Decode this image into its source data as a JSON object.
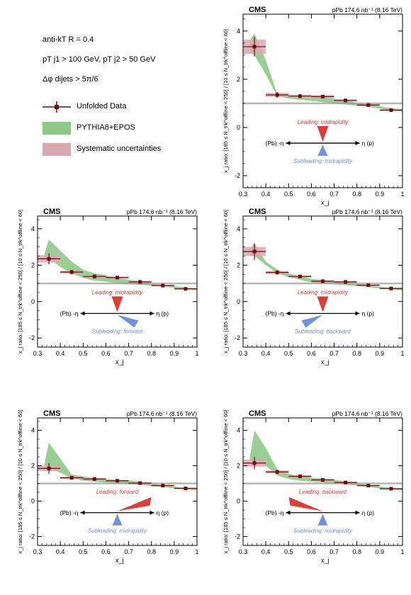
{
  "legend": {
    "jet_def": "anti-kT R = 0.4",
    "pt_cuts": "pT j1 > 100 GeV, pT j2 > 50 GeV",
    "dphi_cut": "Δφ dijets > 5π/6",
    "entries": [
      {
        "label": "Unfolded Data",
        "kind": "marker"
      },
      {
        "label": "PYTHIA8+EPOS",
        "kind": "band"
      },
      {
        "label": "Systematic uncertainties",
        "kind": "syst"
      }
    ]
  },
  "colors": {
    "data": "#6b0e0e",
    "model_band": "#8fc98a",
    "syst_box": "#d9a9b1",
    "leading": "#d9403c",
    "subleading": "#6f93d6",
    "unity_line": "#999999"
  },
  "chart_data": [
    {
      "type": "scatter",
      "experiment": "CMS",
      "energy_label": "pPb 174.6 nb⁻¹ (8.16 TeV)",
      "xlabel": "x_j",
      "ylabel": "x_j ratio: [185 ≤ N_trk^offline < 250] / [10 ≤ N_trk^offline < 60]",
      "xlim": [
        0.3,
        1.0
      ],
      "ylim": [
        -2.5,
        4.7
      ],
      "x_ticks": [
        "0.3",
        "0.4",
        "0.5",
        "0.6",
        "0.7",
        "0.8",
        "0.9",
        "1"
      ],
      "y_ticks": [
        "-2",
        "0",
        "2",
        "4"
      ],
      "x": [
        0.35,
        0.45,
        0.55,
        0.65,
        0.75,
        0.85,
        0.95
      ],
      "y": [
        3.35,
        1.35,
        1.3,
        1.28,
        1.12,
        0.93,
        0.72
      ],
      "y_err": [
        0.4,
        0.12,
        0.08,
        0.06,
        0.06,
        0.05,
        0.05
      ],
      "syst": [
        0.3,
        0.08,
        0.06,
        0.06,
        0.05,
        0.04,
        0.04
      ],
      "model_band": {
        "x": [
          0.33,
          0.35,
          0.4,
          0.45,
          0.5,
          0.55,
          0.6,
          0.65,
          0.7,
          0.75,
          0.8,
          0.85,
          0.9,
          0.95,
          1.0
        ],
        "lo": [
          3.1,
          3.0,
          2.2,
          1.3,
          1.2,
          1.15,
          1.1,
          1.05,
          1.0,
          0.95,
          0.9,
          0.85,
          0.78,
          0.7,
          0.65
        ],
        "hi": [
          3.6,
          3.9,
          2.8,
          1.4,
          1.35,
          1.3,
          1.28,
          1.25,
          1.2,
          1.12,
          1.02,
          0.95,
          0.88,
          0.8,
          0.75
        ]
      },
      "leading_label": "Leading: midrapidity",
      "leading_dir": "mid",
      "subleading_label": "Subleading: midrapidity",
      "subleading_dir": "mid",
      "eta_left": "(Pb) -η",
      "eta_right": "η (p)"
    },
    {
      "type": "scatter",
      "experiment": "CMS",
      "energy_label": "pPb 174.6 nb⁻¹ (8.16 TeV)",
      "xlabel": "x_j",
      "ylabel": "x_j ratio: [185 ≤ N_trk^offline < 250] / [10 ≤ N_trk^offline < 60]",
      "xlim": [
        0.3,
        1.0
      ],
      "ylim": [
        -2.5,
        4.7
      ],
      "x_ticks": [
        "0.3",
        "0.4",
        "0.5",
        "0.6",
        "0.7",
        "0.8",
        "0.9",
        "1"
      ],
      "y_ticks": [
        "-2",
        "0",
        "2",
        "4"
      ],
      "x": [
        0.35,
        0.45,
        0.55,
        0.65,
        0.75,
        0.85,
        0.95
      ],
      "y": [
        2.35,
        1.62,
        1.38,
        1.32,
        1.08,
        0.88,
        0.7
      ],
      "y_err": [
        0.3,
        0.12,
        0.08,
        0.06,
        0.06,
        0.05,
        0.05
      ],
      "syst": [
        0.2,
        0.08,
        0.06,
        0.05,
        0.05,
        0.04,
        0.04
      ],
      "model_band": {
        "x": [
          0.33,
          0.35,
          0.4,
          0.45,
          0.5,
          0.55,
          0.6,
          0.65,
          0.7,
          0.75,
          0.8,
          0.85,
          0.9,
          0.95,
          1.0
        ],
        "lo": [
          2.3,
          2.4,
          1.9,
          1.55,
          1.3,
          1.15,
          1.1,
          1.0,
          0.95,
          0.92,
          0.88,
          0.83,
          0.75,
          0.68,
          0.62
        ],
        "hi": [
          2.6,
          3.4,
          2.8,
          2.2,
          1.75,
          1.55,
          1.45,
          1.3,
          1.2,
          1.12,
          1.0,
          0.92,
          0.85,
          0.78,
          0.72
        ]
      },
      "leading_label": "Leading: midrapidity",
      "leading_dir": "mid",
      "subleading_label": "Subleading: forward",
      "subleading_dir": "forward",
      "eta_left": "(Pb) -η",
      "eta_right": "η (p)"
    },
    {
      "type": "scatter",
      "experiment": "CMS",
      "energy_label": "pPb 174.6 nb⁻¹ (8.16 TeV)",
      "xlabel": "x_j",
      "ylabel": "x_j ratio: [185 ≤ N_trk^offline < 250] / [10 ≤ N_trk^offline < 60]",
      "xlim": [
        0.3,
        1.0
      ],
      "ylim": [
        -2.5,
        4.7
      ],
      "x_ticks": [
        "0.3",
        "0.4",
        "0.5",
        "0.6",
        "0.7",
        "0.8",
        "0.9",
        "1"
      ],
      "y_ticks": [
        "-2",
        "0",
        "2",
        "4"
      ],
      "x": [
        0.35,
        0.45,
        0.55,
        0.65,
        0.75,
        0.85,
        0.95
      ],
      "y": [
        2.75,
        1.6,
        1.38,
        1.12,
        1.08,
        0.9,
        0.72
      ],
      "y_err": [
        0.45,
        0.12,
        0.08,
        0.07,
        0.06,
        0.05,
        0.05
      ],
      "syst": [
        0.25,
        0.08,
        0.06,
        0.05,
        0.05,
        0.04,
        0.04
      ],
      "model_band": {
        "x": [
          0.33,
          0.35,
          0.4,
          0.45,
          0.5,
          0.55,
          0.6,
          0.65,
          0.7,
          0.75,
          0.8,
          0.85,
          0.9,
          0.95,
          1.0
        ],
        "lo": [
          2.5,
          2.5,
          2.0,
          1.55,
          1.35,
          1.2,
          1.05,
          1.0,
          0.95,
          0.9,
          0.85,
          0.8,
          0.72,
          0.66,
          0.6
        ],
        "hi": [
          2.9,
          3.2,
          2.2,
          1.75,
          1.55,
          1.4,
          1.25,
          1.18,
          1.12,
          1.08,
          0.98,
          0.9,
          0.82,
          0.76,
          0.7
        ]
      },
      "leading_label": "Leading: midrapidity",
      "leading_dir": "mid",
      "subleading_label": "Subleading: backward",
      "subleading_dir": "backward",
      "eta_left": "(Pb) -η",
      "eta_right": "η (p)"
    },
    {
      "type": "scatter",
      "experiment": "CMS",
      "energy_label": "pPb 174.6 nb⁻¹ (8.16 TeV)",
      "xlabel": "x_j",
      "ylabel": "x_j ratio: [185 ≤ N_trk^offline < 250] / [10 ≤ N_trk^offline < 60]",
      "xlim": [
        0.3,
        1.0
      ],
      "ylim": [
        -2.5,
        4.7
      ],
      "x_ticks": [
        "0.3",
        "0.4",
        "0.5",
        "0.6",
        "0.7",
        "0.8",
        "0.9",
        "1"
      ],
      "y_ticks": [
        "-2",
        "0",
        "2",
        "4"
      ],
      "x": [
        0.35,
        0.45,
        0.55,
        0.65,
        0.75,
        0.85,
        0.95
      ],
      "y": [
        1.85,
        1.32,
        1.25,
        1.15,
        1.02,
        0.88,
        0.72
      ],
      "y_err": [
        0.3,
        0.1,
        0.08,
        0.06,
        0.06,
        0.05,
        0.05
      ],
      "syst": [
        0.15,
        0.07,
        0.06,
        0.05,
        0.05,
        0.04,
        0.04
      ],
      "model_band": {
        "x": [
          0.33,
          0.35,
          0.4,
          0.45,
          0.5,
          0.55,
          0.6,
          0.65,
          0.7,
          0.75,
          0.8,
          0.85,
          0.9,
          0.95,
          1.0
        ],
        "lo": [
          1.8,
          1.9,
          1.6,
          1.3,
          1.15,
          1.1,
          1.05,
          1.0,
          0.95,
          0.92,
          0.85,
          0.8,
          0.72,
          0.66,
          0.6
        ],
        "hi": [
          2.1,
          3.3,
          2.4,
          1.5,
          1.4,
          1.3,
          1.25,
          1.2,
          1.18,
          1.1,
          0.98,
          0.9,
          0.82,
          0.76,
          0.7
        ]
      },
      "leading_label": "Leading: forward",
      "leading_dir": "forward",
      "subleading_label": "Subleading: midrapidity",
      "subleading_dir": "mid",
      "eta_left": "(Pb) -η",
      "eta_right": "η (p)"
    },
    {
      "type": "scatter",
      "experiment": "CMS",
      "energy_label": "pPb 174.6 nb⁻¹ (8.16 TeV)",
      "xlabel": "x_j",
      "ylabel": "x_j ratio: [185 ≤ N_trk^offline < 250] / [10 ≤ N_trk^offline < 60]",
      "xlim": [
        0.3,
        1.0
      ],
      "ylim": [
        -2.5,
        4.7
      ],
      "x_ticks": [
        "0.3",
        "0.4",
        "0.5",
        "0.6",
        "0.7",
        "0.8",
        "0.9",
        "1"
      ],
      "y_ticks": [
        "-2",
        "0",
        "2",
        "4"
      ],
      "x": [
        0.35,
        0.45,
        0.55,
        0.65,
        0.75,
        0.85,
        0.95
      ],
      "y": [
        2.15,
        1.65,
        1.4,
        1.2,
        1.05,
        0.88,
        0.7
      ],
      "y_err": [
        0.35,
        0.1,
        0.08,
        0.06,
        0.06,
        0.05,
        0.05
      ],
      "syst": [
        0.2,
        0.08,
        0.06,
        0.05,
        0.05,
        0.04,
        0.04
      ],
      "model_band": {
        "x": [
          0.33,
          0.35,
          0.4,
          0.45,
          0.5,
          0.55,
          0.6,
          0.65,
          0.7,
          0.75,
          0.8,
          0.85,
          0.9,
          0.95,
          1.0
        ],
        "lo": [
          2.2,
          2.3,
          2.0,
          1.45,
          1.25,
          1.15,
          1.1,
          1.05,
          1.0,
          0.95,
          0.88,
          0.8,
          0.72,
          0.66,
          0.6
        ],
        "hi": [
          2.5,
          4.0,
          3.0,
          1.8,
          1.55,
          1.4,
          1.32,
          1.28,
          1.2,
          1.12,
          1.0,
          0.92,
          0.82,
          0.76,
          0.7
        ]
      },
      "leading_label": "Leading: backward",
      "leading_dir": "backward",
      "subleading_label": "Subleading: midrapidity",
      "subleading_dir": "mid",
      "eta_left": "(Pb) -η",
      "eta_right": "η (p)"
    }
  ]
}
